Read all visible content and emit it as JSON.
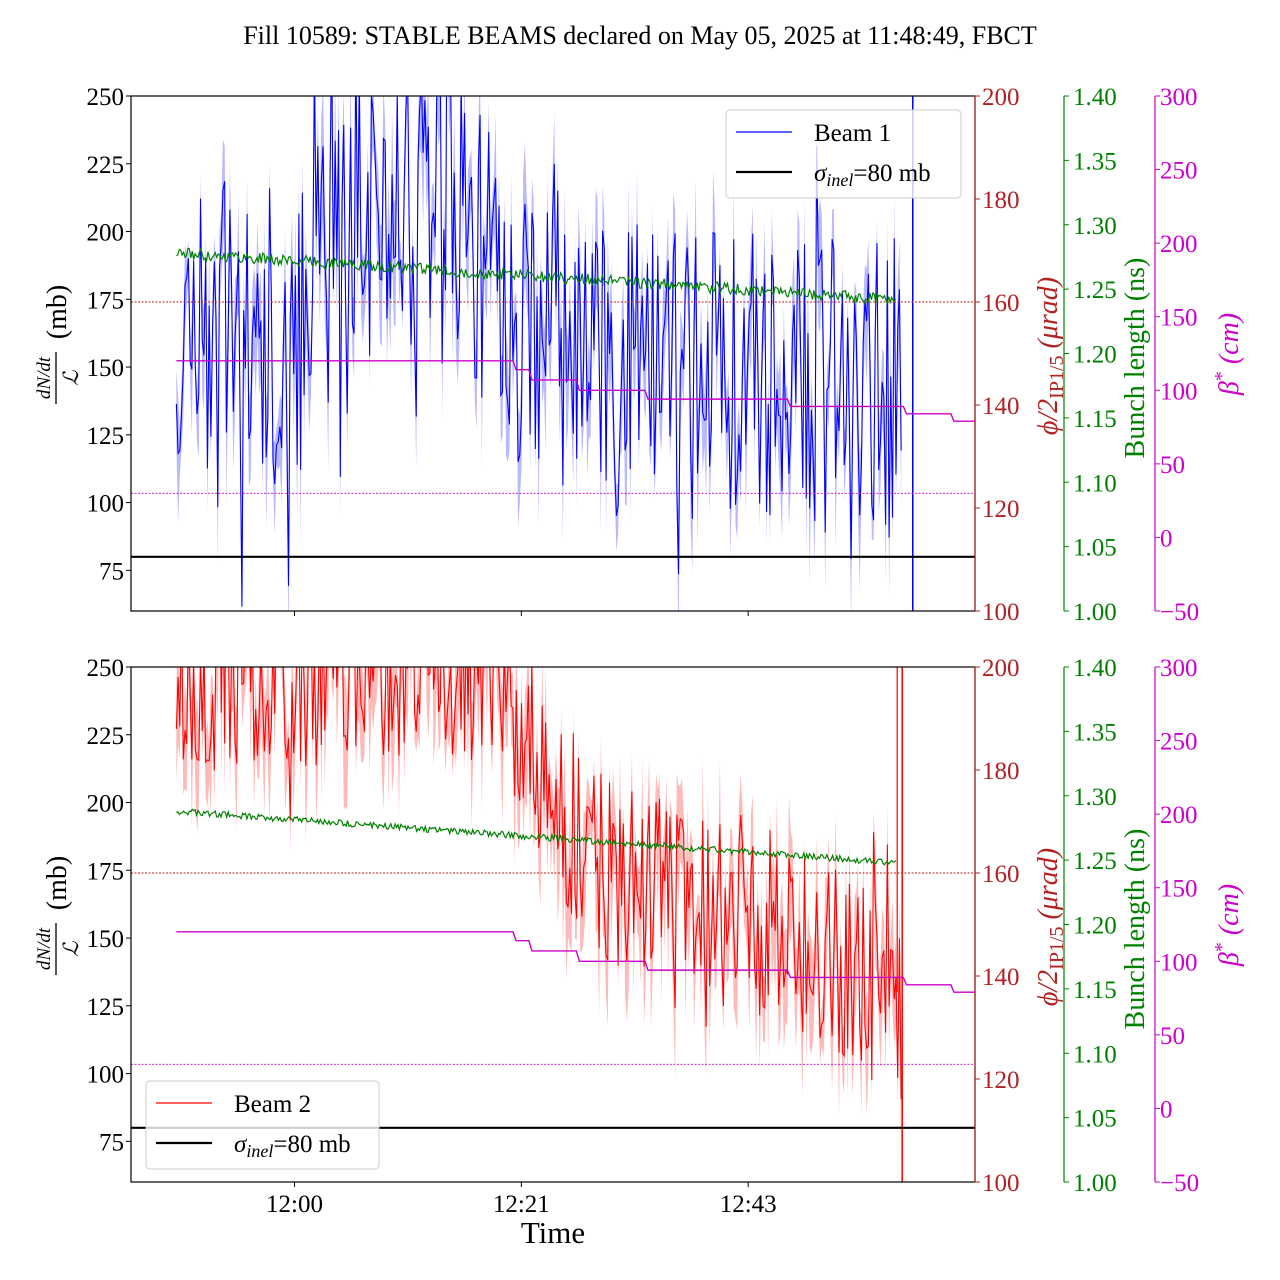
{
  "chart_data": {
    "type": "line",
    "title": "Fill 10589: STABLE BEAMS declared on May 05, 2025 at 11:48:49, FBCT",
    "xlabel": "Time",
    "x_ticks": [
      "12:00",
      "12:21",
      "12:43"
    ],
    "x_range_minutes_from_noon": [
      -15.5,
      64.5
    ],
    "colors": {
      "beam1": "#0000ff",
      "beam1_band": "#8080ff",
      "beam2": "#ff0000",
      "beam2_band": "#ff8080",
      "sigma_line": "#000000",
      "crossing_angle": "#b22222",
      "bunch_length": "#008000",
      "beta_star": "#cc00cc"
    },
    "axes": {
      "left": {
        "label": "dN/dt / L (mb)",
        "label_num": "dN/dt",
        "label_den": "ℒ",
        "label_unit": "(mb)",
        "range": [
          60,
          250
        ],
        "ticks": [
          "75",
          "100",
          "125",
          "150",
          "175",
          "200",
          "225",
          "250"
        ],
        "tick_values": [
          75,
          100,
          125,
          150,
          175,
          200,
          225,
          250
        ]
      },
      "crossing_angle": {
        "label": "ϕ/2IP1/5 (μrad)",
        "label_main": "ϕ/2",
        "label_sub": "IP1/5",
        "label_unit": "(μrad)",
        "range": [
          100,
          200
        ],
        "ticks": [
          "100",
          "120",
          "140",
          "160",
          "180",
          "200"
        ],
        "tick_values": [
          100,
          120,
          140,
          160,
          180,
          200
        ]
      },
      "bunch_length": {
        "label": "Bunch length (ns)",
        "range": [
          1.0,
          1.4
        ],
        "ticks": [
          "1.00",
          "1.05",
          "1.10",
          "1.15",
          "1.20",
          "1.25",
          "1.30",
          "1.35",
          "1.40"
        ],
        "tick_values": [
          1.0,
          1.05,
          1.1,
          1.15,
          1.2,
          1.25,
          1.3,
          1.35,
          1.4
        ]
      },
      "beta_star": {
        "label": "β* (cm)",
        "label_main": "β",
        "label_sup": "*",
        "label_unit": "(cm)",
        "range": [
          -50,
          300
        ],
        "ticks": [
          "−50",
          "0",
          "50",
          "100",
          "150",
          "200",
          "250",
          "300"
        ],
        "tick_values": [
          -50,
          0,
          50,
          100,
          150,
          200,
          250,
          300
        ]
      }
    },
    "panels": [
      {
        "name": "Beam 1",
        "legend": [
          "Beam 1",
          "σinel=80 mb"
        ],
        "legend_sigma_main": "σ",
        "legend_sigma_sub": "inel",
        "legend_sigma_rest": "=80 mb",
        "legend_position": "top-right",
        "sigma_inel_mb": 80,
        "crossing_angle_urad": 160,
        "beta_star_ref_cm": 30,
        "bunch_length_ns": {
          "start": 1.278,
          "end": 1.242,
          "t_start": -11.2,
          "t_end": 57.0
        },
        "beta_star_steps_cm": {
          "t": [
            -11.2,
            21.0,
            22.5,
            27.0,
            33.5,
            47.0,
            58.0,
            62.5,
            65.0
          ],
          "v": [
            120,
            114,
            107,
            100,
            94,
            89,
            84,
            79,
            74
          ]
        },
        "ratio_series": {
          "t_start": -11.2,
          "t_end": 57.5,
          "level_profile": {
            "t": [
              -11.2,
              0,
              5,
              15,
              20,
              30,
              45,
              57.5
            ],
            "v": [
              165,
              160,
              200,
              210,
              170,
              150,
              145,
              140
            ]
          },
          "amplitude": 55,
          "seed": 11
        },
        "end_spike_t": 58.6
      },
      {
        "name": "Beam 2",
        "legend": [
          "Beam 2",
          "σinel=80 mb"
        ],
        "legend_sigma_main": "σ",
        "legend_sigma_sub": "inel",
        "legend_sigma_rest": "=80 mb",
        "legend_position": "bottom-left",
        "sigma_inel_mb": 80,
        "crossing_angle_urad": 160,
        "beta_star_ref_cm": 30,
        "bunch_length_ns": {
          "start": 1.288,
          "end": 1.248,
          "t_start": -11.2,
          "t_end": 57.0
        },
        "beta_star_steps_cm": {
          "t": [
            -11.2,
            21.0,
            22.5,
            27.0,
            33.5,
            47.0,
            58.0,
            62.5,
            65.0
          ],
          "v": [
            120,
            114,
            107,
            100,
            94,
            89,
            84,
            79,
            74
          ]
        },
        "ratio_series": {
          "t_start": -11.2,
          "t_end": 57.5,
          "level_profile": {
            "t": [
              -11.2,
              10,
              20,
              25,
              30,
              40,
              50,
              57.5
            ],
            "v": [
              245,
              250,
              245,
              200,
              175,
              160,
              145,
              125
            ]
          },
          "amplitude": 35,
          "seed": 23
        },
        "end_spike_t": 57.6
      }
    ]
  }
}
